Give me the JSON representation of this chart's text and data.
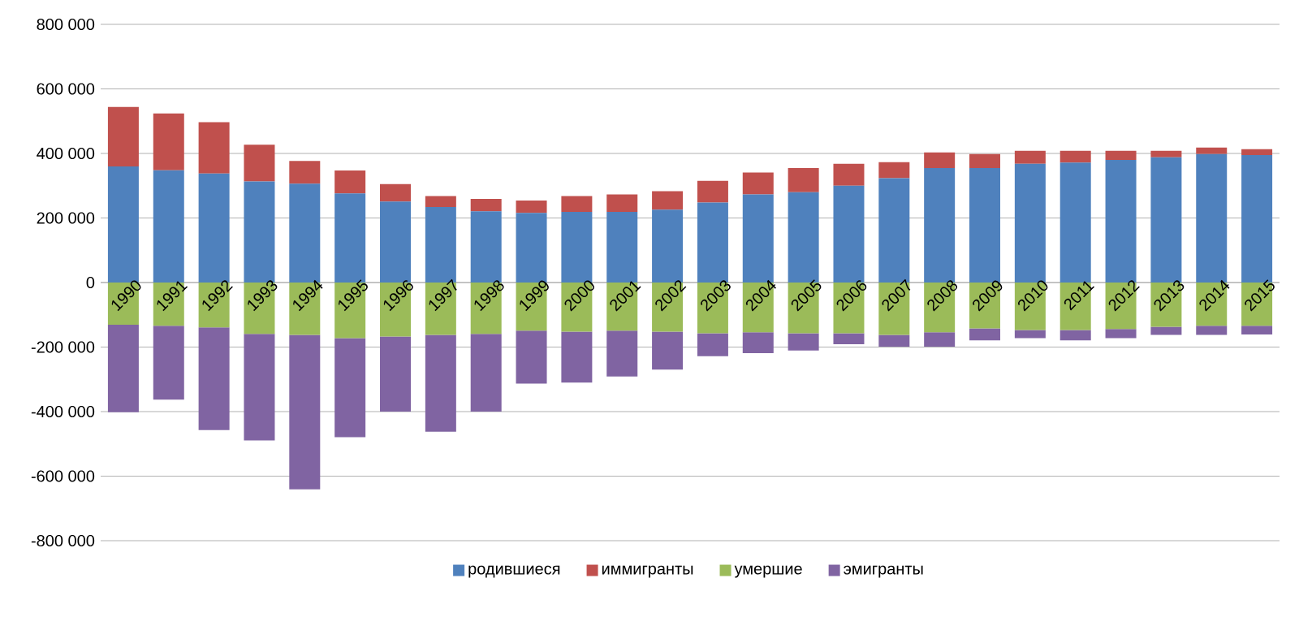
{
  "chart_data": {
    "type": "bar",
    "stacked": true,
    "categories": [
      "1990",
      "1991",
      "1992",
      "1993",
      "1994",
      "1995",
      "1996",
      "1997",
      "1998",
      "1999",
      "2000",
      "2001",
      "2002",
      "2003",
      "2004",
      "2005",
      "2006",
      "2007",
      "2008",
      "2009",
      "2010",
      "2011",
      "2012",
      "2013",
      "2014",
      "2015"
    ],
    "series": [
      {
        "name": "родившиеся",
        "color": "#4f81bd",
        "values": [
          360000,
          348000,
          338000,
          313000,
          306000,
          276000,
          251000,
          234000,
          221000,
          216000,
          219000,
          219000,
          226000,
          248000,
          273000,
          280000,
          300000,
          323000,
          355000,
          355000,
          368000,
          372000,
          380000,
          388000,
          398000,
          395000
        ]
      },
      {
        "name": "иммигранты",
        "color": "#c0504d",
        "values": [
          184000,
          176000,
          159000,
          114000,
          71000,
          71000,
          54000,
          34000,
          38000,
          38000,
          49000,
          54000,
          57000,
          67000,
          68000,
          75000,
          68000,
          50000,
          48000,
          43000,
          40000,
          36000,
          28000,
          20000,
          20000,
          18000
        ]
      },
      {
        "name": "умершие",
        "color": "#9bbb59",
        "values": [
          -131000,
          -134000,
          -139000,
          -159000,
          -162000,
          -172000,
          -167000,
          -162000,
          -159000,
          -149000,
          -152000,
          -149000,
          -152000,
          -157000,
          -154000,
          -157000,
          -157000,
          -162000,
          -154000,
          -142000,
          -147000,
          -147000,
          -144000,
          -137000,
          -134000,
          -134000
        ]
      },
      {
        "name": "эмигранты",
        "color": "#8064a2",
        "values": [
          -271000,
          -229000,
          -318000,
          -330000,
          -479000,
          -307000,
          -233000,
          -300000,
          -241000,
          -164000,
          -158000,
          -142000,
          -118000,
          -71000,
          -65000,
          -54000,
          -34000,
          -37000,
          -45000,
          -37000,
          -25000,
          -32000,
          -28000,
          -25000,
          -28000,
          -27000
        ]
      }
    ],
    "ylim": [
      -800000,
      800000
    ],
    "yticks": [
      {
        "value": -800000,
        "label": "-800 000"
      },
      {
        "value": -600000,
        "label": "-600 000"
      },
      {
        "value": -400000,
        "label": "-400 000"
      },
      {
        "value": -200000,
        "label": "-200 000"
      },
      {
        "value": 0,
        "label": "0"
      },
      {
        "value": 200000,
        "label": "200 000"
      },
      {
        "value": 400000,
        "label": "400 000"
      },
      {
        "value": 600000,
        "label": "600 000"
      },
      {
        "value": 800000,
        "label": "800 000"
      }
    ],
    "grid": "y",
    "legend": "bottom"
  }
}
